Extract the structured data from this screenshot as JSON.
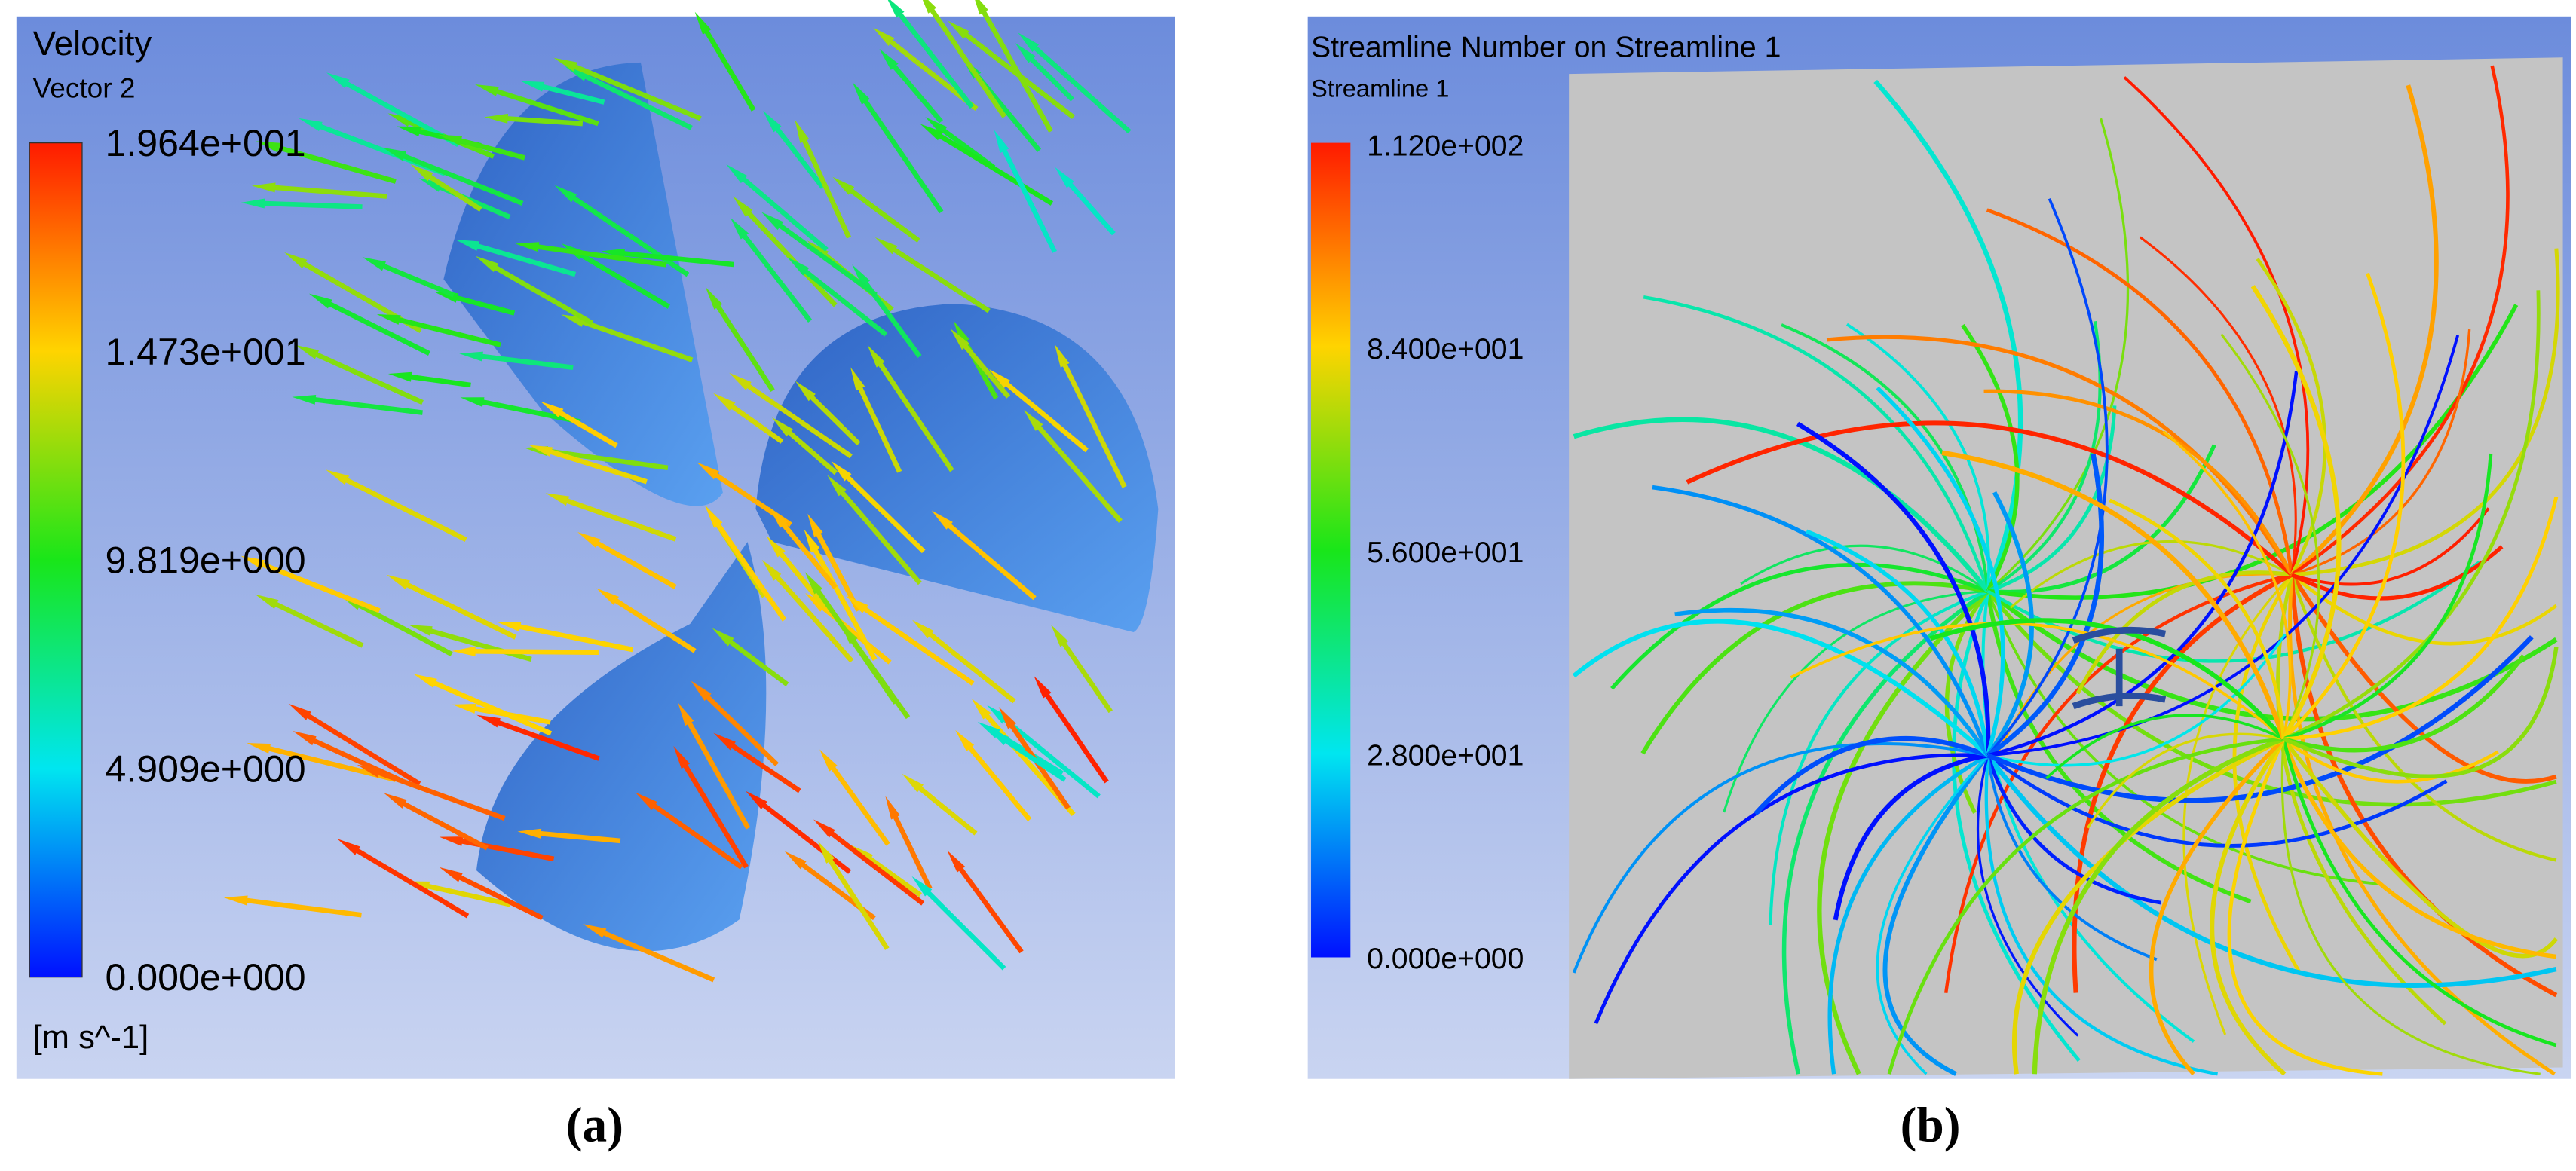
{
  "panels": [
    {
      "title": "Velocity",
      "subtitle": "Vector 2",
      "legend_labels": [
        "1.964e+001",
        "1.473e+001",
        "9.819e+000",
        "4.909e+000",
        "0.000e+000"
      ],
      "unit": "[m s^-1]",
      "caption": "(a)"
    },
    {
      "title": "Streamline Number on Streamline 1",
      "subtitle": "Streamline 1",
      "legend_labels": [
        "1.120e+002",
        "8.400e+001",
        "5.600e+001",
        "2.800e+001",
        "0.000e+000"
      ],
      "caption": "(b)"
    }
  ]
}
